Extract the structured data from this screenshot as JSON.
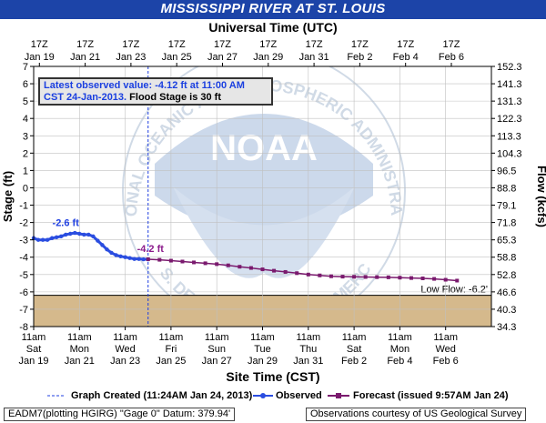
{
  "title": "MISSISSIPPI RIVER AT ST. LOUIS",
  "chart_data": {
    "type": "line",
    "top_axis_title": "Universal Time (UTC)",
    "bottom_axis_title": "Site Time (CST)",
    "left_axis_label": "Stage (ft)",
    "right_axis_label": "Flow (kcfs)",
    "ylim": [
      -8,
      7
    ],
    "y_ticks": [
      7,
      6,
      5,
      4,
      3,
      2,
      1,
      0,
      -1,
      -2,
      -3,
      -4,
      -5,
      -6,
      -7,
      -8
    ],
    "flow_ticks": [
      "152.3",
      "141.3",
      "131.3",
      "122.3",
      "113.3",
      "104.3",
      "96.5",
      "88.8",
      "79.1",
      "71.8",
      "65.3",
      "58.8",
      "52.8",
      "46.6",
      "40.3",
      "34.3"
    ],
    "top_ticks": [
      {
        "l1": "17Z",
        "l2": "Jan 19"
      },
      {
        "l1": "17Z",
        "l2": "Jan 21"
      },
      {
        "l1": "17Z",
        "l2": "Jan 23"
      },
      {
        "l1": "17Z",
        "l2": "Jan 25"
      },
      {
        "l1": "17Z",
        "l2": "Jan 27"
      },
      {
        "l1": "17Z",
        "l2": "Jan 29"
      },
      {
        "l1": "17Z",
        "l2": "Jan 31"
      },
      {
        "l1": "17Z",
        "l2": "Feb  2"
      },
      {
        "l1": "17Z",
        "l2": "Feb  4"
      },
      {
        "l1": "17Z",
        "l2": "Feb  6"
      }
    ],
    "bottom_ticks": [
      {
        "l1": "11am",
        "l2": "Sat",
        "l3": "Jan 19"
      },
      {
        "l1": "11am",
        "l2": "Mon",
        "l3": "Jan 21"
      },
      {
        "l1": "11am",
        "l2": "Wed",
        "l3": "Jan 23"
      },
      {
        "l1": "11am",
        "l2": "Fri",
        "l3": "Jan 25"
      },
      {
        "l1": "11am",
        "l2": "Sun",
        "l3": "Jan 27"
      },
      {
        "l1": "11am",
        "l2": "Tue",
        "l3": "Jan 29"
      },
      {
        "l1": "11am",
        "l2": "Thu",
        "l3": "Jan 31"
      },
      {
        "l1": "11am",
        "l2": "Sat",
        "l3": "Feb  2"
      },
      {
        "l1": "11am",
        "l2": "Mon",
        "l3": "Feb  4"
      },
      {
        "l1": "11am",
        "l2": "Wed",
        "l3": "Feb  6"
      }
    ],
    "low_flow_stage": -6.2,
    "low_flow_label": "Low Flow: -6.2'",
    "graph_created_day": 5.0,
    "observed_series": {
      "name": "Observed",
      "x": [
        0.0,
        0.2,
        0.4,
        0.6,
        0.8,
        1.0,
        1.2,
        1.4,
        1.6,
        1.8,
        2.0,
        2.2,
        2.4,
        2.6,
        2.8,
        3.0,
        3.2,
        3.4,
        3.6,
        3.8,
        4.0,
        4.2,
        4.4,
        4.6,
        4.8,
        5.0
      ],
      "y": [
        -2.9,
        -3.0,
        -3.0,
        -3.0,
        -2.9,
        -2.85,
        -2.8,
        -2.7,
        -2.65,
        -2.6,
        -2.65,
        -2.7,
        -2.7,
        -2.8,
        -3.05,
        -3.3,
        -3.55,
        -3.75,
        -3.88,
        -3.95,
        -4.0,
        -4.05,
        -4.1,
        -4.1,
        -4.12,
        -4.12
      ]
    },
    "forecast_series": {
      "name": "Forecast",
      "x": [
        5.0,
        5.5,
        6.0,
        6.5,
        7.0,
        7.5,
        8.0,
        8.5,
        9.0,
        9.5,
        10.0,
        10.5,
        11.0,
        11.5,
        12.0,
        12.5,
        13.0,
        13.5,
        14.0,
        14.5,
        15.0,
        15.5,
        16.0,
        16.5,
        17.0,
        17.5,
        18.0,
        18.5
      ],
      "y": [
        -4.12,
        -4.15,
        -4.2,
        -4.25,
        -4.3,
        -4.35,
        -4.4,
        -4.47,
        -4.55,
        -4.62,
        -4.7,
        -4.78,
        -4.85,
        -4.92,
        -5.0,
        -5.05,
        -5.1,
        -5.12,
        -5.13,
        -5.14,
        -5.15,
        -5.16,
        -5.18,
        -5.2,
        -5.22,
        -5.25,
        -5.3,
        -5.35
      ]
    },
    "annotations": [
      {
        "text": "-2.6 ft",
        "x": 1.4,
        "y": -2.2,
        "color": "#1f3fe0"
      },
      {
        "text": "-4.2 ft",
        "x": 5.1,
        "y": -3.7,
        "color": "#8b1a8b"
      }
    ]
  },
  "info_box": {
    "line1": "Latest observed value: -4.12  ft at 11:00 AM",
    "line2a": "CST 24-Jan-2013.",
    "line2b": " Flood Stage is 30 ft"
  },
  "legend": {
    "graph_created": "Graph Created (11:24AM Jan 24, 2013)",
    "observed": "Observed",
    "forecast": "Forecast (issued 9:57AM Jan 24)"
  },
  "footer": {
    "left": "EADM7(plotting HGIRG) \"Gage 0\" Datum:  379.94'",
    "right": "Observations courtesy of US Geological Survey"
  },
  "watermark": {
    "arc_top": "NATIONAL OCEANIC AND ATMOSPHERIC ADMINISTRATION",
    "arc_bottom": "U.S. DEPARTMENT OF COMMERCE",
    "center": "NOAA"
  },
  "colors": {
    "title_bg": "#1c44a8",
    "observed": "#2a4de0",
    "forecast": "#7a1a6e",
    "below_low_flow": "#d5b98c",
    "grid": "#c0c0c0"
  }
}
